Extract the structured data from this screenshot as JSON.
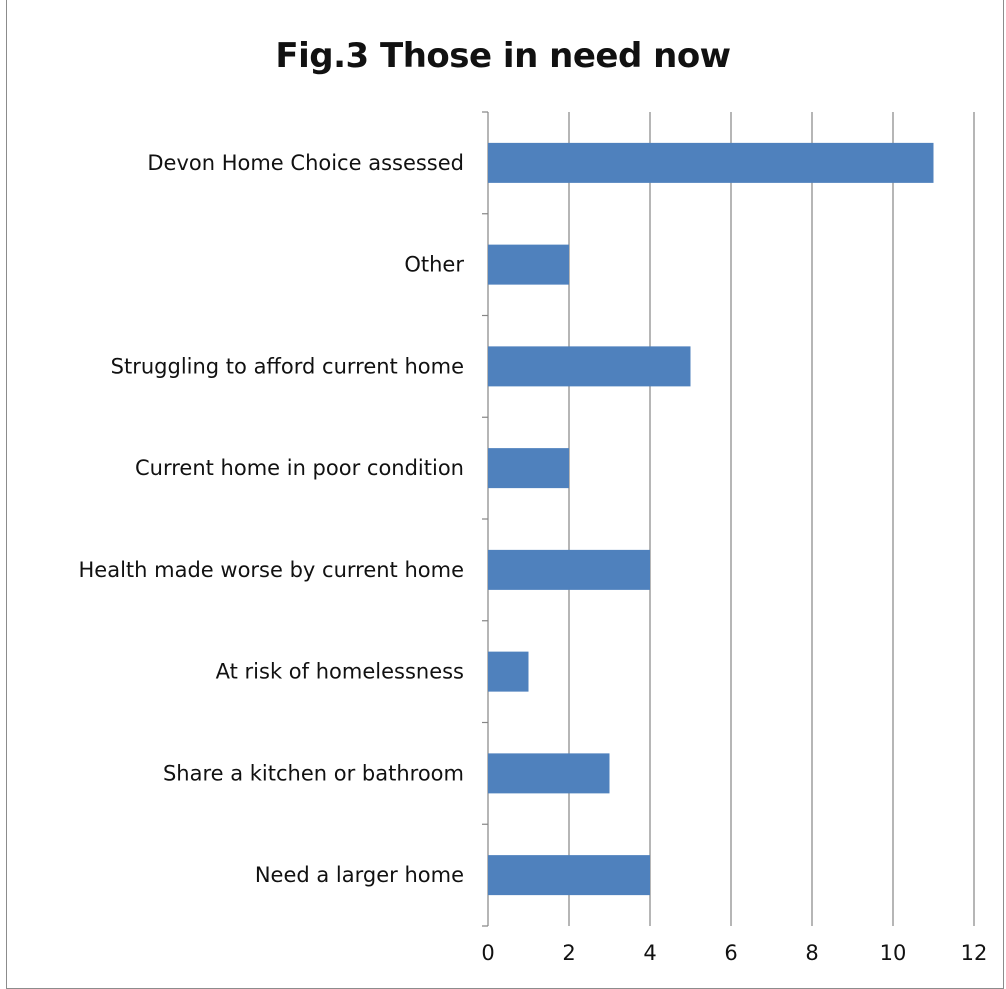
{
  "chart_data": {
    "type": "bar",
    "orientation": "horizontal",
    "title": "Fig.3 Those in need now",
    "categories": [
      "Devon Home Choice assessed",
      "Other",
      "Struggling to afford current home",
      "Current home in poor condition",
      "Health made worse by current home",
      "At risk of homelessness",
      "Share a kitchen or bathroom",
      "Need a larger home"
    ],
    "values": [
      11,
      2,
      5,
      2,
      4,
      1,
      3,
      4
    ],
    "xlim": [
      0,
      12
    ],
    "x_ticks": [
      "0",
      "2",
      "4",
      "6",
      "8",
      "10",
      "12"
    ],
    "grid": "vertical",
    "legend": "none",
    "bar_color": "#4f81bd",
    "grid_color": "#868686"
  }
}
